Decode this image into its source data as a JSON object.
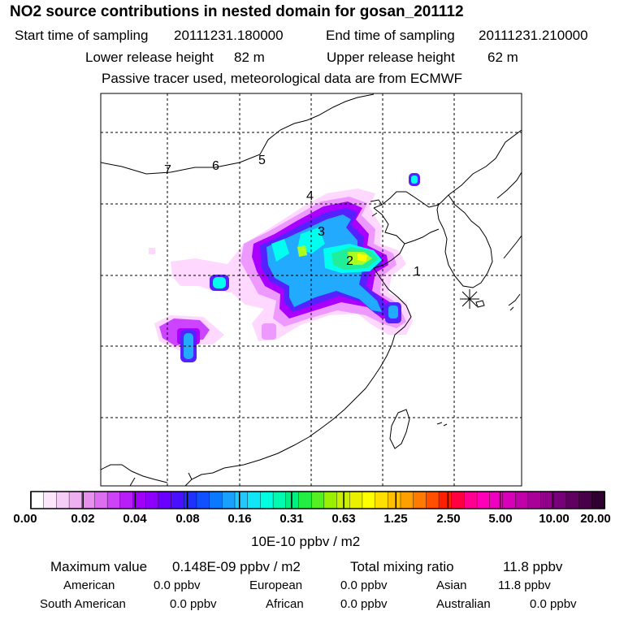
{
  "title": "NO2 source contributions in nested domain for gosan_201112",
  "start_label": "Start time of sampling",
  "start_value": "20111231.180000",
  "end_label": "End time of sampling",
  "end_value": "20111231.210000",
  "lower_label": "Lower release height",
  "lower_value": "82 m",
  "upper_label": "Upper release height",
  "upper_value": "62 m",
  "note": "Passive tracer used, meteorological data are from ECMWF",
  "map": {
    "markers": [
      "1",
      "2",
      "3",
      "4",
      "5",
      "6",
      "7"
    ],
    "receptor_icon": "asterisk-receptor-icon",
    "plume_colors": [
      "#ffd8ff",
      "#ee99ff",
      "#cc44ff",
      "#aa00ff",
      "#5522ff",
      "#1166ff",
      "#22aaff",
      "#00ffee",
      "#22ee99",
      "#aaff22",
      "#ffff00"
    ]
  },
  "colorbar": {
    "labels": [
      "0.00",
      "0.02",
      "0.04",
      "0.08",
      "0.16",
      "0.31",
      "0.63",
      "1.25",
      "2.50",
      "5.00",
      "10.00",
      "20.00"
    ],
    "colors": [
      "#ffffff",
      "#fbe6fb",
      "#f6cdf6",
      "#efb0f2",
      "#e890ee",
      "#dc6ef0",
      "#cc44f5",
      "#b81ef8",
      "#a000fa",
      "#8c00fc",
      "#6a00ff",
      "#4a10ff",
      "#2030ff",
      "#1050ff",
      "#0a78ff",
      "#1aa0ff",
      "#22c8ff",
      "#10e6f5",
      "#00ffe0",
      "#00f8b0",
      "#00f080",
      "#22ee44",
      "#55f022",
      "#99f000",
      "#c8f000",
      "#eaf000",
      "#ffff00",
      "#ffe000",
      "#ffc000",
      "#ffa000",
      "#ff7a00",
      "#ff5000",
      "#ff2000",
      "#ff0040",
      "#ff0090",
      "#ff00b8",
      "#f000c0",
      "#d800b8",
      "#c000a8",
      "#a80098",
      "#900088",
      "#780078",
      "#600060",
      "#480048",
      "#300030"
    ],
    "unit": "10E-10 ppbv / m2"
  },
  "summary": {
    "max_label": "Maximum value",
    "max_value": "0.148E-09 ppbv / m2",
    "total_label": "Total mixing ratio",
    "total_value": "11.8 ppbv"
  },
  "regions": {
    "american_label": "American",
    "american_value": "0.0 ppbv",
    "european_label": "European",
    "european_value": "0.0 ppbv",
    "asian_label": "Asian",
    "asian_value": "11.8 ppbv",
    "south_american_label": "South American",
    "south_american_value": "0.0 ppbv",
    "african_label": "African",
    "african_value": "0.0 ppbv",
    "australian_label": "Australian",
    "australian_value": "0.0 ppbv"
  }
}
